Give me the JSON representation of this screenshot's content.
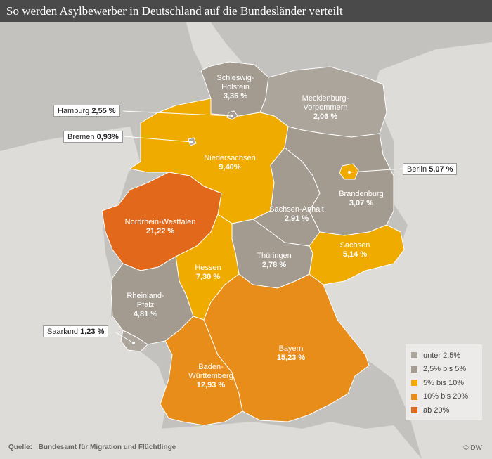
{
  "title": "So werden Asylbewerber in Deutschland auf die Bundesländer verteilt",
  "colors": {
    "sea": "#c3c2be",
    "land_neighbors": "#dedcd8",
    "category_low": "#aca59b",
    "category_mid": "#a39b90",
    "category_5_10": "#f0ab00",
    "category_10_20": "#e88d1a",
    "category_20_plus": "#e2691b"
  },
  "states": [
    {
      "id": "sh",
      "name": "Schleswig-Holstein",
      "name_lines": [
        "Schleswig-",
        "Holstein"
      ],
      "value": "3,36 %",
      "category": "category_mid"
    },
    {
      "id": "mv",
      "name": "Mecklenburg-Vorpommern",
      "name_lines": [
        "Mecklenburg-",
        "Vorpommern"
      ],
      "value": "2,06 %",
      "category": "category_low"
    },
    {
      "id": "ni",
      "name": "Niedersachsen",
      "name_lines": [
        "Niedersachsen"
      ],
      "value": "9,40%",
      "category": "category_5_10"
    },
    {
      "id": "bb",
      "name": "Brandenburg",
      "name_lines": [
        "Brandenburg"
      ],
      "value": "3,07 %",
      "category": "category_mid"
    },
    {
      "id": "st",
      "name": "Sachsen-Anhalt",
      "name_lines": [
        "Sachsen-Anhalt"
      ],
      "value": "2,91 %",
      "category": "category_mid"
    },
    {
      "id": "nw",
      "name": "Nordrhein-Westfalen",
      "name_lines": [
        "Nordrhein-Westfalen"
      ],
      "value": "21,22 %",
      "category": "category_20_plus"
    },
    {
      "id": "sn",
      "name": "Sachsen",
      "name_lines": [
        "Sachsen"
      ],
      "value": "5,14 %",
      "category": "category_5_10"
    },
    {
      "id": "th",
      "name": "Thüringen",
      "name_lines": [
        "Thüringen"
      ],
      "value": "2,78 %",
      "category": "category_mid"
    },
    {
      "id": "he",
      "name": "Hessen",
      "name_lines": [
        "Hessen"
      ],
      "value": "7,30 %",
      "category": "category_5_10"
    },
    {
      "id": "rp",
      "name": "Rheinland-Pfalz",
      "name_lines": [
        "Rheinland-",
        "Pfalz"
      ],
      "value": "4,81 %",
      "category": "category_mid"
    },
    {
      "id": "by",
      "name": "Bayern",
      "name_lines": [
        "Bayern"
      ],
      "value": "15,23 %",
      "category": "category_10_20"
    },
    {
      "id": "bw",
      "name": "Baden-Württemberg",
      "name_lines": [
        "Baden-",
        "Württemberg"
      ],
      "value": "12,93 %",
      "category": "category_10_20"
    },
    {
      "id": "sl",
      "name": "Saarland",
      "name_lines": [
        "Saarland"
      ],
      "value": "1,23 %",
      "category": "category_low"
    },
    {
      "id": "hh",
      "name": "Hamburg",
      "name_lines": [
        "Hamburg"
      ],
      "value": "2,55 %",
      "category": "category_mid"
    },
    {
      "id": "hb",
      "name": "Bremen",
      "name_lines": [
        "Bremen"
      ],
      "value": "0,93%",
      "category": "category_low"
    },
    {
      "id": "be",
      "name": "Berlin",
      "name_lines": [
        "Berlin"
      ],
      "value": "5,07 %",
      "category": "category_5_10"
    }
  ],
  "callouts": {
    "hamburg": {
      "name": "Hamburg",
      "value": "2,55 %"
    },
    "bremen": {
      "name": "Bremen",
      "value": "0,93%"
    },
    "berlin": {
      "name": "Berlin",
      "value": "5,07 %"
    },
    "saarland": {
      "name": "Saarland",
      "value": "1,23 %"
    }
  },
  "legend": [
    {
      "label": "unter 2,5%",
      "color": "#aca59b"
    },
    {
      "label": "2,5% bis 5%",
      "color": "#a39b90"
    },
    {
      "label": "5% bis 10%",
      "color": "#f0ab00"
    },
    {
      "label": "10% bis 20%",
      "color": "#e88d1a"
    },
    {
      "label": "ab 20%",
      "color": "#e2691b"
    }
  ],
  "source": {
    "label": "Quelle:",
    "text": "Bundesamt für Migration und Flüchtlinge"
  },
  "copyright": "© DW"
}
